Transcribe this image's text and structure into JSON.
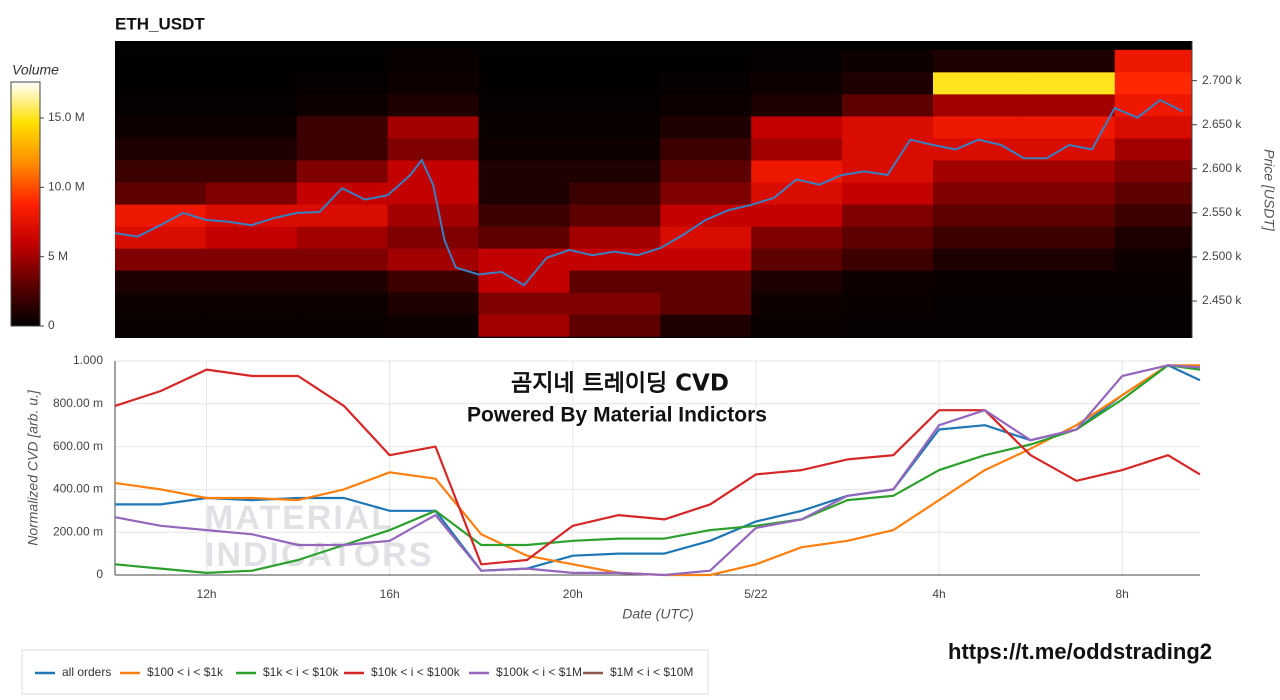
{
  "chart_data": [
    {
      "type": "heatmap",
      "title": "ETH_USDT",
      "y_label": "Price [USDT]",
      "z_label": "Volume",
      "xlim": [
        10,
        33.7
      ],
      "ylim": [
        2408,
        2745
      ],
      "yticks": [
        {
          "value": 2450,
          "label": "2.450 k"
        },
        {
          "value": 2500,
          "label": "2.500 k"
        },
        {
          "value": 2550,
          "label": "2.550 k"
        },
        {
          "value": 2600,
          "label": "2.600 k"
        },
        {
          "value": 2650,
          "label": "2.650 k"
        },
        {
          "value": 2700,
          "label": "2.700 k"
        }
      ],
      "zlim": [
        0,
        17.6
      ],
      "zticks": [
        0,
        {
          "value": 5,
          "label": "5 M"
        },
        {
          "value": 10,
          "label": "10.0 M"
        },
        {
          "value": 15,
          "label": "15.0 M"
        }
      ],
      "colorscale": [
        "#000000",
        "#5a0000",
        "#c00000",
        "#ff2000",
        "#ff8c00",
        "#ffe000",
        "#ffffff"
      ],
      "xbins": [
        10,
        12,
        14,
        16,
        18,
        20,
        22,
        24,
        26,
        28,
        30,
        32,
        33.7
      ],
      "ybins": [
        2410,
        2435,
        2460,
        2485,
        2510,
        2535,
        2560,
        2585,
        2610,
        2635,
        2660,
        2685,
        2710,
        2735
      ],
      "z": [
        [
          0.3,
          0.3,
          0.3,
          0.5,
          5,
          3,
          1,
          0.3,
          0.2,
          0.2,
          0.2,
          0.2
        ],
        [
          0.5,
          0.5,
          0.5,
          1,
          4,
          4,
          3,
          0.5,
          0.3,
          0.2,
          0.2,
          0.2
        ],
        [
          1,
          1,
          1,
          2,
          6,
          3,
          3,
          1,
          0.5,
          0.3,
          0.3,
          0.3
        ],
        [
          4,
          4,
          4,
          5,
          6,
          6,
          6,
          3,
          2,
          1,
          1,
          0.5
        ],
        [
          7,
          6,
          5,
          4,
          3,
          5,
          7,
          4,
          3,
          2,
          2,
          1
        ],
        [
          8,
          7,
          7,
          5,
          2,
          3,
          6,
          6,
          4,
          3,
          3,
          2
        ],
        [
          3,
          4,
          6,
          6,
          1,
          2,
          4,
          7,
          6,
          4,
          4,
          3
        ],
        [
          2,
          2,
          4,
          6,
          1,
          1,
          3,
          8,
          7,
          5,
          5,
          4
        ],
        [
          1,
          1,
          2,
          4,
          0.5,
          0.5,
          2,
          5,
          7,
          7,
          7,
          5
        ],
        [
          0.5,
          0.5,
          2,
          5,
          0.3,
          0.3,
          1,
          6,
          7,
          8,
          8,
          7
        ],
        [
          0.2,
          0.2,
          0.5,
          1,
          0.2,
          0.2,
          0.5,
          1,
          3,
          5,
          5,
          8
        ],
        [
          0.1,
          0.1,
          0.2,
          0.5,
          0.1,
          0.1,
          0.2,
          0.5,
          1,
          15,
          15,
          9
        ],
        [
          0.1,
          0.1,
          0.1,
          0.3,
          0.1,
          0.1,
          0.1,
          0.2,
          0.5,
          1,
          1,
          8
        ]
      ],
      "price": {
        "color": "#3a7fc1",
        "x": [
          10,
          10.5,
          11,
          11.5,
          12,
          12.5,
          13,
          13.5,
          14,
          14.5,
          15,
          15.5,
          16,
          16.5,
          16.75,
          17,
          17.25,
          17.5,
          18,
          18.5,
          19,
          19.5,
          20,
          20.5,
          21,
          21.5,
          22,
          22.5,
          23,
          23.5,
          24,
          24.5,
          25,
          25.5,
          26,
          26.5,
          27,
          27.5,
          28,
          28.5,
          29,
          29.5,
          30,
          30.5,
          31,
          31.5,
          32,
          32.5,
          33,
          33.5
        ],
        "values": [
          2527,
          2523,
          2536,
          2550,
          2542,
          2540,
          2536,
          2544,
          2550,
          2551,
          2578,
          2565,
          2570,
          2593,
          2610,
          2582,
          2519,
          2488,
          2480,
          2483,
          2468,
          2499,
          2508,
          2502,
          2506,
          2502,
          2510,
          2525,
          2542,
          2553,
          2559,
          2567,
          2588,
          2582,
          2593,
          2597,
          2593,
          2633,
          2627,
          2622,
          2633,
          2627,
          2612,
          2612,
          2627,
          2622,
          2669,
          2658,
          2678,
          2665
        ]
      }
    },
    {
      "type": "line",
      "title": "곰지네 트레이딩 CVD",
      "subtitle": "Powered By Material Indictors",
      "x_label": "Date (UTC)",
      "y_label": "Normalized CVD [arb. u.]",
      "watermark": [
        "MATERIAL",
        "INDICATORS"
      ],
      "grid": true,
      "legend": "bottom-left",
      "xlim": [
        10,
        33.7
      ],
      "ylim": [
        0,
        1
      ],
      "xticks": [
        {
          "value": 12,
          "label": "12h"
        },
        {
          "value": 16,
          "label": "16h"
        },
        {
          "value": 20,
          "label": "20h"
        },
        {
          "value": 24,
          "label": "5/22"
        },
        {
          "value": 28,
          "label": "4h"
        },
        {
          "value": 32,
          "label": "8h"
        }
      ],
      "yticks": [
        0,
        {
          "value": 0.2,
          "label": "200.00 m"
        },
        {
          "value": 0.4,
          "label": "400.00 m"
        },
        {
          "value": 0.6,
          "label": "600.00 m"
        },
        {
          "value": 0.8,
          "label": "800.00 m"
        },
        {
          "value": 1,
          "label": "1.000"
        }
      ],
      "x": [
        10,
        11,
        12,
        13,
        14,
        15,
        16,
        17,
        18,
        19,
        20,
        21,
        22,
        23,
        24,
        25,
        26,
        27,
        28,
        29,
        30,
        31,
        32,
        33,
        33.7
      ],
      "series": [
        {
          "name": "all orders",
          "color": "#1f77b4",
          "values": [
            0.33,
            0.33,
            0.36,
            0.35,
            0.36,
            0.36,
            0.3,
            0.3,
            0.02,
            0.03,
            0.09,
            0.1,
            0.1,
            0.16,
            0.25,
            0.3,
            0.37,
            0.4,
            0.68,
            0.7,
            0.63,
            0.68,
            0.84,
            0.98,
            0.91
          ]
        },
        {
          "name": "$100 < i < $1k",
          "color": "#ff7f0e",
          "values": [
            0.43,
            0.4,
            0.36,
            0.36,
            0.35,
            0.4,
            0.48,
            0.45,
            0.19,
            0.09,
            0.05,
            0.01,
            0,
            0,
            0.05,
            0.13,
            0.16,
            0.21,
            0.35,
            0.49,
            0.59,
            0.7,
            0.84,
            0.98,
            0.98
          ]
        },
        {
          "name": "$1k < i < $10k",
          "color": "#2ca02c",
          "values": [
            0.05,
            0.03,
            0.01,
            0.02,
            0.07,
            0.14,
            0.21,
            0.3,
            0.14,
            0.14,
            0.16,
            0.17,
            0.17,
            0.21,
            0.23,
            0.26,
            0.35,
            0.37,
            0.49,
            0.56,
            0.61,
            0.68,
            0.82,
            0.98,
            0.96
          ]
        },
        {
          "name": "$10k < i < $100k",
          "color": "#d62728",
          "values": [
            0.79,
            0.86,
            0.96,
            0.93,
            0.93,
            0.79,
            0.56,
            0.6,
            0.05,
            0.07,
            0.23,
            0.28,
            0.26,
            0.33,
            0.47,
            0.49,
            0.54,
            0.56,
            0.77,
            0.77,
            0.56,
            0.44,
            0.49,
            0.56,
            0.47
          ]
        },
        {
          "name": "$100k < i < $1M",
          "color": "#9467bd",
          "values": [
            0.27,
            0.23,
            0.21,
            0.19,
            0.14,
            0.14,
            0.16,
            0.28,
            0.02,
            0.03,
            0.01,
            0.01,
            0,
            0.02,
            0.22,
            0.26,
            0.37,
            0.4,
            0.7,
            0.77,
            0.63,
            0.68,
            0.93,
            0.98,
            0.97
          ]
        },
        {
          "name": "$1M < i < $10M",
          "color": "#8c564b",
          "values": [
            null,
            null,
            null,
            null,
            null,
            null,
            null,
            null,
            null,
            null,
            null,
            null,
            null,
            null,
            null,
            null,
            null,
            null,
            null,
            null,
            null,
            null,
            null,
            null,
            null
          ]
        }
      ]
    }
  ],
  "link": "https://t.me/oddstrading2"
}
